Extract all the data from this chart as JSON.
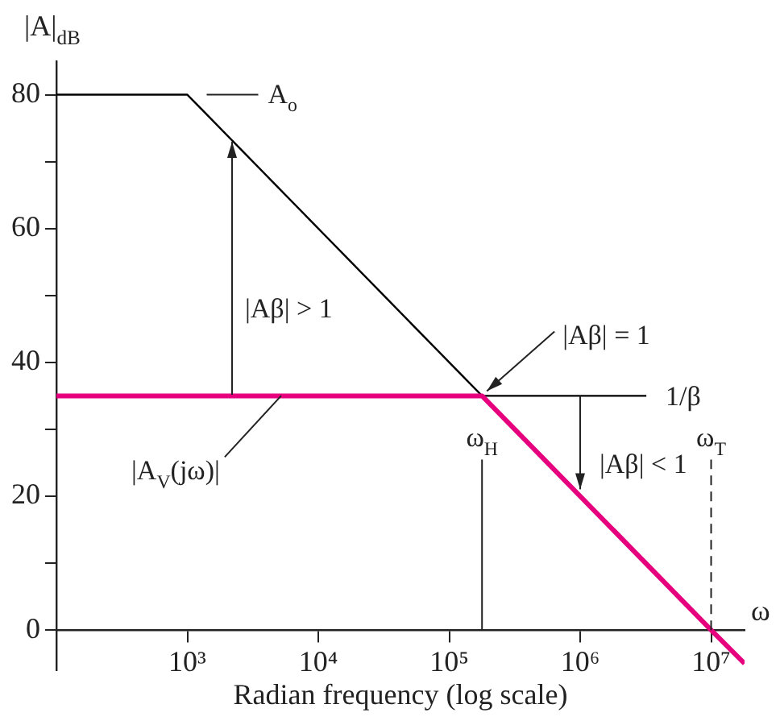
{
  "chart_data": {
    "type": "line",
    "xlabel": "Radian frequency (log scale)",
    "ylabel": "|A|$_{dB}$",
    "log": "x",
    "xlim": [
      100,
      18000000
    ],
    "ylim": [
      -6,
      85
    ],
    "xticks": [
      {
        "value": 1000,
        "label": "10³"
      },
      {
        "value": 10000,
        "label": "10⁴"
      },
      {
        "value": 100000,
        "label": "10⁵"
      },
      {
        "value": 1000000,
        "label": "10⁶"
      },
      {
        "value": 10000000,
        "label": "10⁷"
      }
    ],
    "yticks": [
      0,
      {
        "value": 10,
        "label": null
      },
      20,
      {
        "value": 30,
        "label": null
      },
      40,
      {
        "value": 50,
        "label": null
      },
      60,
      {
        "value": 70,
        "label": null
      },
      80
    ],
    "grid": false,
    "legend": false,
    "marker": "none",
    "line_style": "solid",
    "series": [
      {
        "color": "#000000",
        "x": [
          100,
          1000,
          178000
        ],
        "values": [
          80,
          80,
          35
        ]
      },
      {
        "color": "#000000",
        "x": [
          178000,
          3200000
        ],
        "values": [
          35,
          35
        ]
      },
      {
        "color": "#e6007e",
        "x": [
          100,
          178000,
          10000000,
          18000000
        ],
        "values": [
          35,
          35,
          0,
          -5
        ]
      }
    ],
    "ref_lines": [
      {
        "axis": "x",
        "value": 178000,
        "label": "ω$_{H}$"
      },
      {
        "axis": "x",
        "value": 10000000,
        "label": "ω$_{T}$",
        "line_style": "dashed"
      }
    ],
    "annotations": [
      {
        "text": "A$_{o}$",
        "x": 1000,
        "y": 80
      },
      "|Aβ| > 1",
      {
        "text": "|Aβ| = 1",
        "x": 178000,
        "y": 35
      },
      {
        "text": "1/β",
        "x": 3200000,
        "y": 35
      },
      {
        "text": "|A$_{V}$(jω)|",
        "x": 5200,
        "y": 35
      },
      {
        "text": "|Aβ| < 1",
        "x": 1000000,
        "y": 35
      },
      "ω"
    ]
  }
}
